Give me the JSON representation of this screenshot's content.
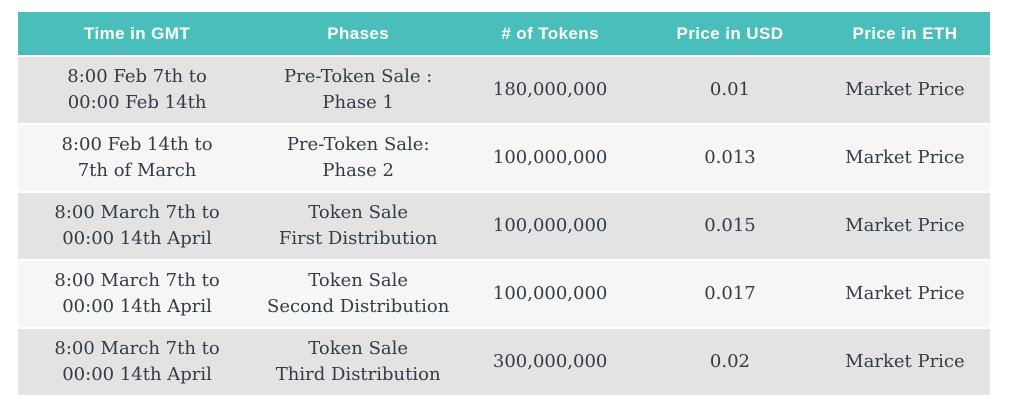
{
  "colors": {
    "accent": "#49bebb",
    "header_text": "#ffffff",
    "body_text": "#333b47",
    "row_odd": "#e3e3e3",
    "row_even": "#f6f6f6",
    "page_background": "#ffffff"
  },
  "table": {
    "headers": [
      "Time in GMT",
      "Phases",
      "# of Tokens",
      "Price in USD",
      "Price in ETH"
    ],
    "rows": [
      {
        "time": [
          "8:00 Feb 7th to",
          "00:00 Feb 14th"
        ],
        "phase": [
          "Pre-Token Sale :",
          "Phase 1"
        ],
        "tokens": "180,000,000",
        "price_usd": "0.01",
        "price_eth": "Market Price"
      },
      {
        "time": [
          "8:00 Feb 14th to",
          "7th of March"
        ],
        "phase": [
          "Pre-Token Sale:",
          "Phase 2"
        ],
        "tokens": "100,000,000",
        "price_usd": "0.013",
        "price_eth": "Market Price"
      },
      {
        "time": [
          "8:00 March 7th to",
          "00:00 14th April"
        ],
        "phase": [
          "Token Sale",
          "First Distribution"
        ],
        "tokens": "100,000,000",
        "price_usd": "0.015",
        "price_eth": "Market Price"
      },
      {
        "time": [
          "8:00 March 7th to",
          "00:00 14th April"
        ],
        "phase": [
          "Token Sale",
          "Second Distribution"
        ],
        "tokens": "100,000,000",
        "price_usd": "0.017",
        "price_eth": "Market Price"
      },
      {
        "time": [
          "8:00 March 7th to",
          "00:00 14th April"
        ],
        "phase": [
          "Token Sale",
          "Third Distribution"
        ],
        "tokens": "300,000,000",
        "price_usd": "0.02",
        "price_eth": "Market Price"
      }
    ]
  },
  "chart_data": {
    "type": "table",
    "columns": [
      "Time in GMT",
      "Phases",
      "# of Tokens",
      "Price in USD",
      "Price in ETH"
    ],
    "rows": [
      [
        "8:00 Feb 7th to 00:00 Feb 14th",
        "Pre-Token Sale: Phase 1",
        "180,000,000",
        "0.01",
        "Market Price"
      ],
      [
        "8:00 Feb 14th to 7th of March",
        "Pre-Token Sale: Phase 2",
        "100,000,000",
        "0.013",
        "Market Price"
      ],
      [
        "8:00 March 7th to 00:00 14th April",
        "Token Sale First Distribution",
        "100,000,000",
        "0.015",
        "Market Price"
      ],
      [
        "8:00 March 7th to 00:00 14th April",
        "Token Sale Second Distribution",
        "100,000,000",
        "0.017",
        "Market Price"
      ],
      [
        "8:00 March 7th to 00:00 14th April",
        "Token Sale Third Distribution",
        "300,000,000",
        "0.02",
        "Market Price"
      ]
    ],
    "tokens_numeric": [
      180000000,
      100000000,
      100000000,
      100000000,
      300000000
    ],
    "price_usd_numeric": [
      0.01,
      0.013,
      0.015,
      0.017,
      0.02
    ],
    "title": "",
    "legend": "none",
    "grid": "off"
  }
}
